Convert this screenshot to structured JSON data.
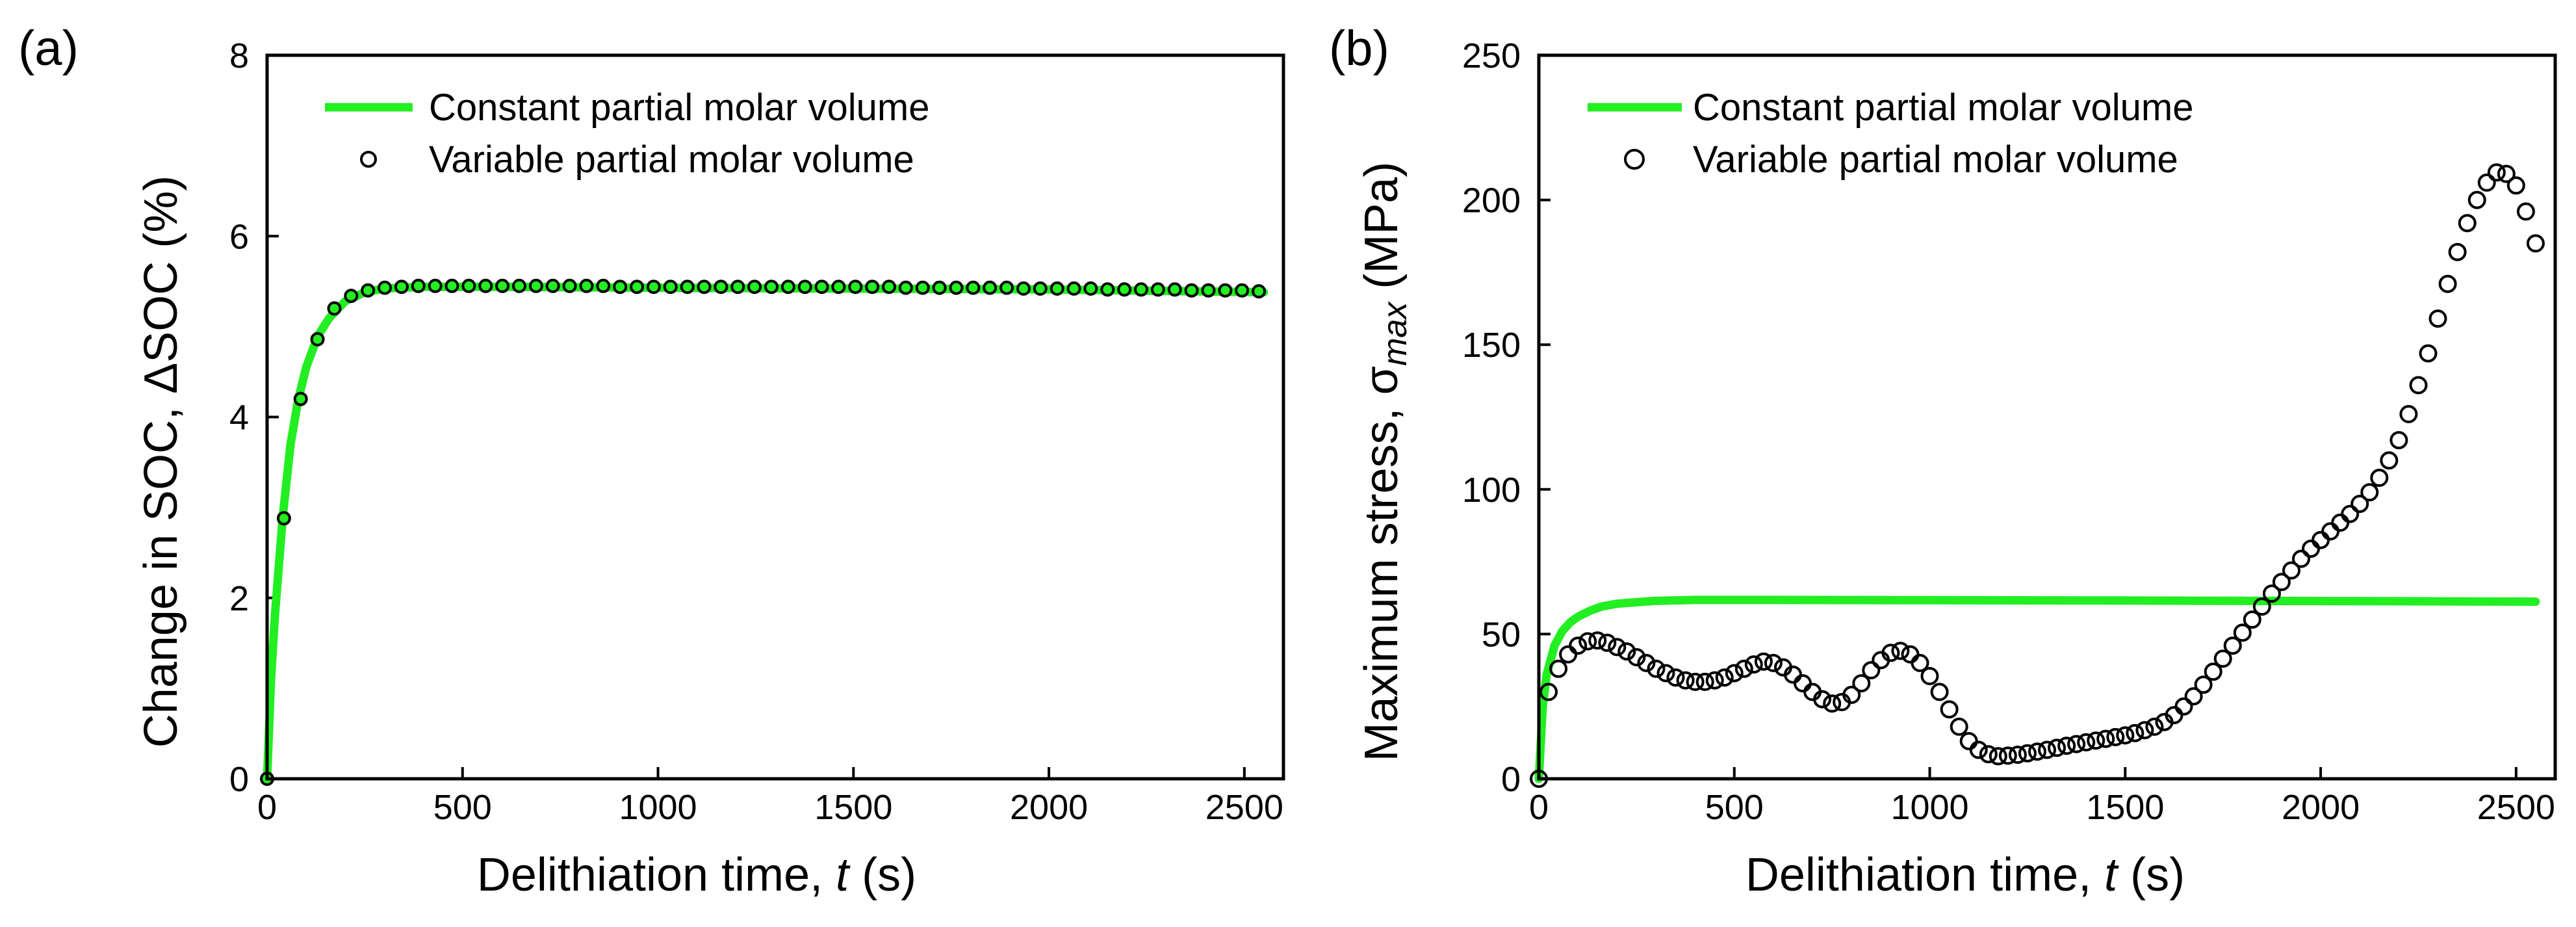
{
  "colors": {
    "constant": "#22ee22",
    "marker_fill": "#22ee22",
    "marker_stroke": "#000000",
    "axis": "#000000"
  },
  "chart_data": [
    {
      "type": "line",
      "panel_label": "(a)",
      "xlabel_prefix": "Delithiation time, ",
      "xlabel_var": "t",
      "xlabel_suffix": " (s)",
      "ylabel_prefix": "Change in SOC, ",
      "ylabel_var": "ΔSOC",
      "ylabel_suffix": " (%)",
      "xlim": [
        0,
        2600
      ],
      "ylim": [
        0,
        8
      ],
      "xticks": [
        0,
        500,
        1000,
        1500,
        2000,
        2500
      ],
      "yticks": [
        0,
        2,
        4,
        6,
        8
      ],
      "legend_position": "top-left",
      "series": [
        {
          "name": "Constant partial molar volume",
          "style": "line",
          "x": [
            0,
            10,
            20,
            40,
            60,
            80,
            100,
            130,
            160,
            200,
            250,
            300,
            400,
            600,
            1000,
            1500,
            2000,
            2550
          ],
          "y": [
            0,
            1.1,
            1.8,
            2.9,
            3.7,
            4.2,
            4.55,
            4.9,
            5.1,
            5.28,
            5.38,
            5.42,
            5.44,
            5.44,
            5.43,
            5.42,
            5.41,
            5.38
          ]
        },
        {
          "name": "Variable partial molar volume",
          "style": "markers",
          "x": [
            0,
            43,
            86,
            129,
            172,
            215,
            258,
            301,
            344,
            387,
            430,
            473,
            516,
            559,
            602,
            645,
            688,
            731,
            774,
            817,
            860,
            903,
            946,
            989,
            1032,
            1075,
            1118,
            1161,
            1204,
            1247,
            1290,
            1333,
            1376,
            1419,
            1462,
            1505,
            1548,
            1591,
            1634,
            1677,
            1720,
            1763,
            1806,
            1849,
            1892,
            1935,
            1978,
            2021,
            2064,
            2107,
            2150,
            2193,
            2236,
            2279,
            2322,
            2365,
            2408,
            2451,
            2494,
            2537
          ],
          "y": [
            0,
            2.88,
            4.2,
            4.86,
            5.2,
            5.34,
            5.4,
            5.43,
            5.44,
            5.45,
            5.45,
            5.45,
            5.45,
            5.45,
            5.45,
            5.45,
            5.45,
            5.45,
            5.45,
            5.45,
            5.45,
            5.44,
            5.44,
            5.44,
            5.44,
            5.44,
            5.44,
            5.44,
            5.44,
            5.44,
            5.44,
            5.44,
            5.44,
            5.44,
            5.44,
            5.44,
            5.44,
            5.44,
            5.43,
            5.43,
            5.43,
            5.43,
            5.43,
            5.43,
            5.43,
            5.42,
            5.42,
            5.42,
            5.42,
            5.42,
            5.41,
            5.41,
            5.41,
            5.41,
            5.41,
            5.4,
            5.4,
            5.4,
            5.4,
            5.39
          ]
        }
      ]
    },
    {
      "type": "line",
      "panel_label": "(b)",
      "xlabel_prefix": "Delithiation time, ",
      "xlabel_var": "t",
      "xlabel_suffix": " (s)",
      "ylabel_prefix": "Maximum stress, σ",
      "ylabel_sub": "max",
      "ylabel_suffix": " (MPa)",
      "xlim": [
        0,
        2600
      ],
      "ylim": [
        0,
        250
      ],
      "xticks": [
        0,
        500,
        1000,
        1500,
        2000,
        2500
      ],
      "yticks": [
        0,
        50,
        100,
        150,
        200,
        250
      ],
      "legend_position": "top-left",
      "series": [
        {
          "name": "Constant partial molar volume",
          "style": "line",
          "x": [
            0,
            10,
            20,
            40,
            60,
            80,
            100,
            130,
            160,
            200,
            250,
            300,
            400,
            600,
            1000,
            1500,
            2000,
            2550
          ],
          "y": [
            0,
            25,
            36,
            46,
            51,
            54,
            56,
            58,
            59.5,
            60.5,
            61,
            61.5,
            61.8,
            61.8,
            61.7,
            61.6,
            61.4,
            61.2
          ]
        },
        {
          "name": "Variable partial molar volume",
          "style": "markers",
          "x": [
            0,
            25,
            50,
            75,
            100,
            125,
            150,
            175,
            200,
            225,
            250,
            275,
            300,
            325,
            350,
            375,
            400,
            425,
            450,
            475,
            500,
            525,
            550,
            575,
            600,
            625,
            650,
            675,
            700,
            725,
            750,
            775,
            800,
            825,
            850,
            875,
            900,
            925,
            950,
            975,
            1000,
            1025,
            1050,
            1075,
            1100,
            1125,
            1150,
            1175,
            1200,
            1225,
            1250,
            1275,
            1300,
            1325,
            1350,
            1375,
            1400,
            1425,
            1450,
            1475,
            1500,
            1525,
            1550,
            1575,
            1600,
            1625,
            1650,
            1675,
            1700,
            1725,
            1750,
            1775,
            1800,
            1825,
            1850,
            1875,
            1900,
            1925,
            1950,
            1975,
            2000,
            2025,
            2050,
            2075,
            2100,
            2125,
            2150,
            2175,
            2200,
            2225,
            2250,
            2275,
            2300,
            2325,
            2350,
            2375,
            2400,
            2425,
            2450,
            2475,
            2500,
            2525,
            2550
          ],
          "y": [
            0,
            30,
            38,
            43,
            46,
            47.5,
            47.8,
            47,
            45.5,
            44,
            42,
            40,
            38,
            36.5,
            35,
            34,
            33.5,
            33.5,
            34,
            35,
            36.5,
            38,
            39.5,
            40.5,
            40,
            38.5,
            36,
            33,
            30,
            27.5,
            26,
            26.5,
            29,
            33,
            37.5,
            41,
            43.5,
            44.2,
            43,
            40,
            35.5,
            30,
            24,
            18,
            13,
            10,
            8.5,
            7.8,
            8,
            8.3,
            8.8,
            9.4,
            10,
            10.7,
            11.4,
            12,
            12.6,
            13.2,
            13.8,
            14.4,
            15,
            15.8,
            16.8,
            18,
            19.6,
            22,
            25,
            28.5,
            32.5,
            37,
            41.5,
            46,
            50.5,
            55,
            59.5,
            64,
            68,
            72,
            76,
            79.5,
            82.5,
            85.5,
            88.5,
            91.5,
            95,
            99,
            104,
            110,
            117,
            126,
            136,
            147,
            159,
            171,
            182,
            192,
            200,
            206,
            209.5,
            209,
            205,
            196,
            185
          ]
        }
      ]
    }
  ]
}
